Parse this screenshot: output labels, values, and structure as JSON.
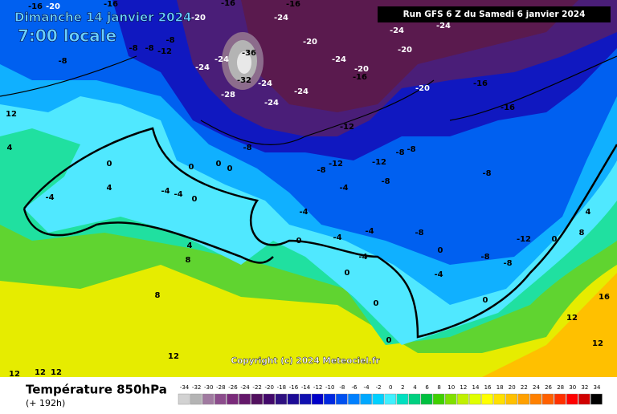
{
  "header": {
    "date": "Dimanche 14 janvier 2024",
    "time": "7:00 locale",
    "run": "Run GFS 6 Z du Samedi 6 janvier 2024"
  },
  "map": {
    "contour_labels": [
      -16,
      -20,
      -16,
      -20,
      -16,
      -24,
      -16,
      -8,
      -8,
      -12,
      -8,
      -24,
      -20,
      -24,
      -24,
      -24,
      -28,
      -24,
      -20,
      -16,
      -20,
      -24,
      -24,
      -20,
      -16,
      -16,
      -12,
      -8,
      -12,
      -8,
      -12,
      -8,
      -8,
      -8,
      -8,
      -4,
      -4,
      -4,
      -4,
      -8,
      -12,
      -8,
      -8,
      0,
      0,
      -4,
      0,
      0,
      -4,
      0,
      0,
      0,
      -8,
      0,
      0,
      0,
      0,
      -4,
      -4,
      -4,
      0,
      4,
      4,
      8,
      8,
      4,
      12,
      12,
      12,
      12,
      12,
      12,
      16,
      12,
      4,
      8,
      -36,
      -32,
      -24
    ],
    "copyright": "Copyright (c) 2024 Meteociel.fr"
  },
  "footer": {
    "title": "Température 850hPa",
    "lead": "(+ 192h)"
  },
  "legend": {
    "values": [
      -34,
      -32,
      -30,
      -28,
      -26,
      -24,
      -22,
      -20,
      -18,
      -16,
      -14,
      -12,
      -10,
      -8,
      -6,
      -4,
      -2,
      0,
      2,
      4,
      6,
      8,
      10,
      12,
      14,
      16,
      18,
      20,
      22,
      24,
      26,
      28,
      30,
      32,
      34
    ],
    "colors": [
      "#d2d2d2",
      "#b4b4b4",
      "#a07aa0",
      "#8c4c8c",
      "#7a2a7a",
      "#64186a",
      "#52105e",
      "#42086a",
      "#2e1080",
      "#1c0a96",
      "#1010b0",
      "#0000c8",
      "#0028e0",
      "#0050f0",
      "#0080ff",
      "#00a8ff",
      "#00d0ff",
      "#40f0ff",
      "#00e0c0",
      "#00d080",
      "#00c040",
      "#40d000",
      "#80e000",
      "#c0f000",
      "#e0ff00",
      "#ffff00",
      "#ffe000",
      "#ffc000",
      "#ffa000",
      "#ff8000",
      "#ff6000",
      "#ff3000",
      "#ff0000",
      "#d00000",
      "#000000"
    ]
  }
}
